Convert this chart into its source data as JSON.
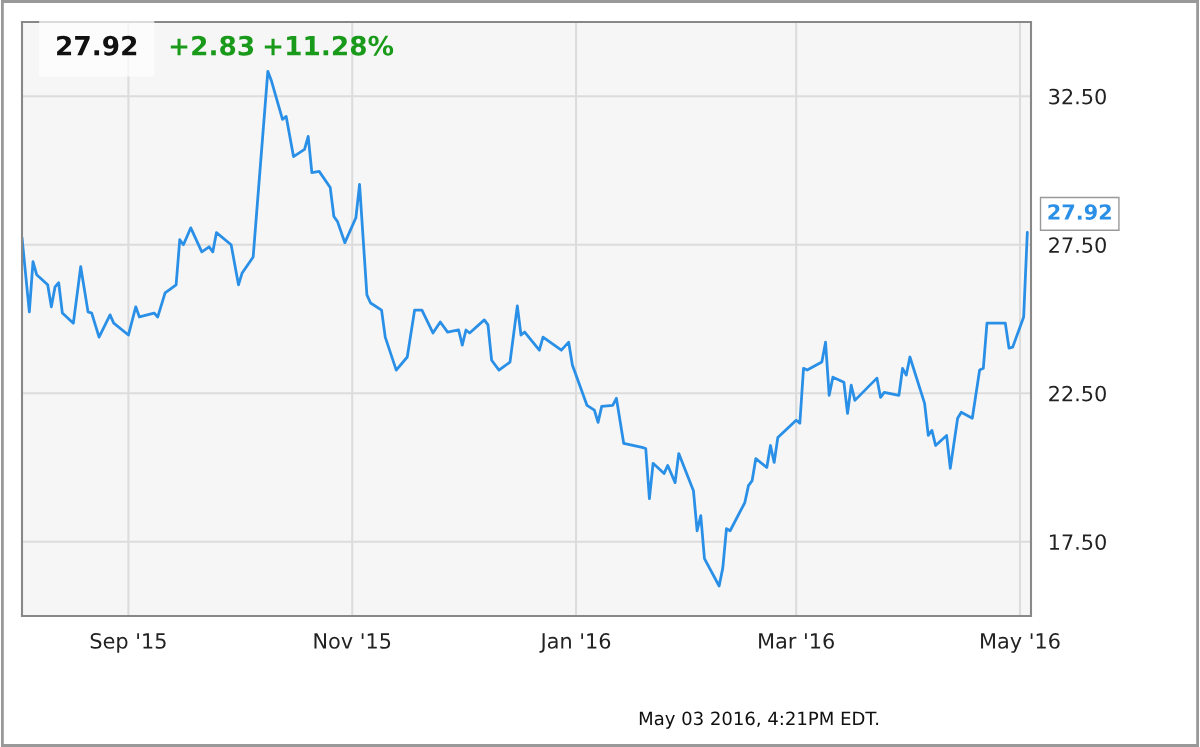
{
  "chart_data": {
    "type": "line",
    "title": "27.92",
    "annotations": [
      "+2.83",
      "+11.28%",
      "May 03 2016, 4:21PM EDT.",
      {
        "text": "27.92",
        "x": "2016-05-03",
        "y": 27.92
      }
    ],
    "x": [
      "2015-08-03",
      "2015-08-05",
      "2015-08-06",
      "2015-08-07",
      "2015-08-10",
      "2015-08-11",
      "2015-08-12",
      "2015-08-13",
      "2015-08-14",
      "2015-08-17",
      "2015-08-19",
      "2015-08-21",
      "2015-08-22",
      "2015-08-24",
      "2015-08-27",
      "2015-08-28",
      "2015-09-01",
      "2015-09-03",
      "2015-09-04",
      "2015-09-08",
      "2015-09-09",
      "2015-09-11",
      "2015-09-14",
      "2015-09-15",
      "2015-09-16",
      "2015-09-18",
      "2015-09-21",
      "2015-09-23",
      "2015-09-24",
      "2015-09-25",
      "2015-09-29",
      "2015-10-01",
      "2015-10-02",
      "2015-10-05",
      "2015-10-09",
      "2015-10-10",
      "2015-10-13",
      "2015-10-14",
      "2015-10-16",
      "2015-10-19",
      "2015-10-20",
      "2015-10-21",
      "2015-10-23",
      "2015-10-26",
      "2015-10-27",
      "2015-10-28",
      "2015-10-30",
      "2015-11-02",
      "2015-11-03",
      "2015-11-05",
      "2015-11-06",
      "2015-11-09",
      "2015-11-10",
      "2015-11-13",
      "2015-11-16",
      "2015-11-18",
      "2015-11-20",
      "2015-11-23",
      "2015-11-25",
      "2015-11-27",
      "2015-11-30",
      "2015-12-01",
      "2015-12-02",
      "2015-12-03",
      "2015-12-07",
      "2015-12-08",
      "2015-12-09",
      "2015-12-11",
      "2015-12-14",
      "2015-12-16",
      "2015-12-17",
      "2015-12-18",
      "2015-12-22",
      "2015-12-23",
      "2015-12-28",
      "2015-12-30",
      "2015-12-31",
      "2016-01-04",
      "2016-01-06",
      "2016-01-07",
      "2016-01-08",
      "2016-01-11",
      "2016-01-12",
      "2016-01-14",
      "2016-01-19",
      "2016-01-20",
      "2016-01-21",
      "2016-01-22",
      "2016-01-25",
      "2016-01-26",
      "2016-01-28",
      "2016-01-29",
      "2016-02-02",
      "2016-02-03",
      "2016-02-04",
      "2016-02-05",
      "2016-02-09",
      "2016-02-10",
      "2016-02-11",
      "2016-02-12",
      "2016-02-16",
      "2016-02-17",
      "2016-02-18",
      "2016-02-19",
      "2016-02-22",
      "2016-02-23",
      "2016-02-24",
      "2016-02-25",
      "2016-03-01",
      "2016-03-02",
      "2016-03-03",
      "2016-03-04",
      "2016-03-08",
      "2016-03-09",
      "2016-03-10",
      "2016-03-11",
      "2016-03-14",
      "2016-03-15",
      "2016-03-16",
      "2016-03-17",
      "2016-03-23",
      "2016-03-24",
      "2016-03-25",
      "2016-03-29",
      "2016-03-30",
      "2016-03-31",
      "2016-04-01",
      "2016-04-05",
      "2016-04-06",
      "2016-04-07",
      "2016-04-08",
      "2016-04-11",
      "2016-04-12",
      "2016-04-14",
      "2016-04-15",
      "2016-04-18",
      "2016-04-20",
      "2016-04-21",
      "2016-04-22",
      "2016-04-27",
      "2016-04-28",
      "2016-04-29",
      "2016-05-02",
      "2016-05-03"
    ],
    "series": [
      {
        "color": "#2a8fe6",
        "values": [
          27.74,
          25.24,
          26.93,
          26.49,
          26.15,
          25.41,
          26.08,
          26.22,
          25.2,
          24.86,
          26.76,
          25.24,
          25.2,
          24.39,
          25.14,
          24.86,
          24.46,
          25.41,
          25.07,
          25.2,
          25.07,
          25.88,
          26.15,
          27.67,
          27.5,
          28.07,
          27.26,
          27.43,
          27.26,
          27.91,
          27.5,
          26.15,
          26.55,
          27.09,
          33.34,
          33.01,
          31.72,
          31.82,
          30.47,
          30.71,
          31.15,
          29.93,
          29.97,
          29.43,
          28.45,
          28.28,
          27.57,
          28.41,
          29.53,
          25.81,
          25.54,
          25.3,
          24.39,
          23.28,
          23.72,
          25.3,
          25.3,
          24.53,
          24.9,
          24.56,
          24.63,
          24.12,
          24.63,
          24.53,
          24.97,
          24.8,
          23.61,
          23.28,
          23.55,
          25.44,
          24.46,
          24.56,
          23.95,
          24.39,
          23.95,
          24.22,
          23.45,
          22.09,
          21.93,
          21.52,
          22.06,
          22.09,
          22.33,
          20.81,
          20.68,
          20.64,
          18.95,
          20.14,
          19.8,
          20.07,
          19.49,
          20.47,
          19.22,
          17.87,
          18.38,
          16.93,
          16.01,
          16.62,
          17.94,
          17.87,
          18.82,
          19.39,
          19.56,
          20.3,
          20.0,
          20.74,
          20.17,
          21.01,
          21.59,
          21.49,
          23.34,
          23.28,
          23.55,
          24.22,
          22.43,
          23.04,
          22.87,
          21.82,
          22.77,
          22.26,
          23.01,
          22.36,
          22.53,
          22.43,
          23.34,
          23.11,
          23.72,
          22.16,
          21.08,
          21.25,
          20.74,
          21.08,
          19.97,
          21.66,
          21.86,
          21.66,
          23.28,
          23.34,
          24.86,
          24.86,
          24.02,
          24.05,
          25.07,
          27.92
        ]
      }
    ],
    "xlim": [
      "2015-08-03",
      "2016-05-04"
    ],
    "xticks": [
      {
        "value": "2015-09-01",
        "label": "Sep '15"
      },
      {
        "value": "2015-11-01",
        "label": "Nov '15"
      },
      {
        "value": "2016-01-01",
        "label": "Jan '16"
      },
      {
        "value": "2016-03-01",
        "label": "Mar '16"
      },
      {
        "value": "2016-05-01",
        "label": "May '16"
      }
    ],
    "ylim": [
      15,
      35
    ],
    "yticks": [
      {
        "value": 17.5,
        "label": "17.50"
      },
      {
        "value": 22.5,
        "label": "22.50"
      },
      {
        "value": 27.5,
        "label": "27.50"
      },
      {
        "value": 32.5,
        "label": "32.50"
      }
    ],
    "grid": true,
    "legend": false
  }
}
